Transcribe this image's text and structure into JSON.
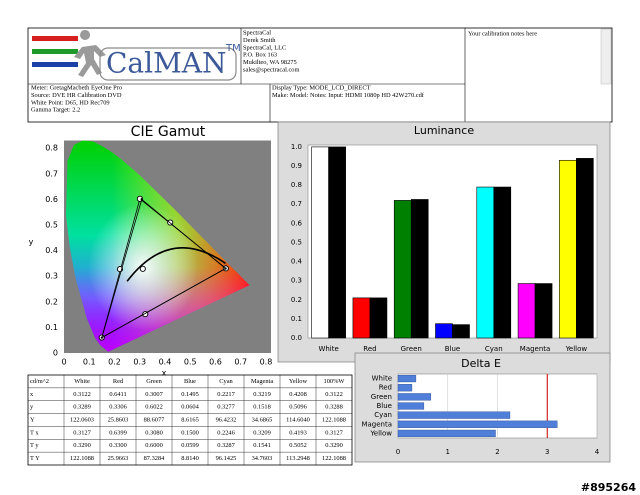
{
  "header": {
    "logo": "CalMAN",
    "logo_mark": "TM",
    "contact": [
      "SpectraCal",
      "Derek Smith",
      "SpectraCal, LLC",
      "P.O. Box 163",
      "Mukilteo, WA 98275",
      "sales@spectracal.com"
    ],
    "notes": "Your calibration notes here",
    "meter": [
      "Meter: GretagMacbeth EyeOne Pro",
      "Source: DVE HR Calibration DVD",
      "White Point: D65, HD Rec709",
      "Gamma Target: 2.2"
    ],
    "display": [
      "Display Type: MODE_LCD_DIRECT",
      "Make: Model: Notes: Input: HDMI 1080p HD     42W270.cdf"
    ]
  },
  "chart_data": [
    {
      "type": "scatter",
      "title": "CIE Gamut",
      "xlabel": "x",
      "ylabel": "y",
      "xlim": [
        0,
        0.82
      ],
      "ylim": [
        0,
        0.83
      ],
      "xticks": [
        0,
        0.1,
        0.2,
        0.3,
        0.4,
        0.5,
        0.6,
        0.7,
        0.8
      ],
      "yticks": [
        0,
        0.1,
        0.2,
        0.3,
        0.4,
        0.5,
        0.6,
        0.7,
        0.8
      ],
      "series": [
        {
          "color": "#000000",
          "x": [
            0.6411,
            0.3007,
            0.1495,
            0.2217,
            0.3219,
            0.4208,
            0.3122
          ],
          "values": [
            0.3306,
            0.6022,
            0.0604,
            0.3277,
            0.1518,
            0.5096,
            0.3289
          ]
        },
        {
          "color": "#000000",
          "x": [
            0.6399,
            0.308,
            0.15
          ],
          "values": [
            0.33,
            0.6,
            0.0599
          ]
        }
      ]
    },
    {
      "type": "bar",
      "title": "Luminance",
      "categories": [
        "White",
        "Red",
        "Green",
        "Blue",
        "Cyan",
        "Magenta",
        "Yellow"
      ],
      "ylim": [
        0,
        1.01
      ],
      "yticks": [
        {
          "value": 0,
          "label": "0.0"
        },
        0.1,
        0.2,
        0.3,
        0.4,
        0.5,
        0.6,
        0.7,
        0.8,
        0.9,
        {
          "value": 1,
          "label": "1.0"
        }
      ],
      "series": [
        {
          "colors": [
            "#ffffff",
            "#ff0000",
            "#008000",
            "#0000ff",
            "#00ffff",
            "#ff00ff",
            "#ffff00"
          ],
          "values": [
            1.0,
            0.21,
            0.72,
            0.075,
            0.79,
            0.285,
            0.93
          ]
        },
        {
          "color": "#000000",
          "values": [
            1.0,
            0.21,
            0.725,
            0.07,
            0.79,
            0.285,
            0.94
          ]
        }
      ]
    },
    {
      "type": "hbar",
      "title": "Delta E",
      "categories": [
        "White",
        "Red",
        "Green",
        "Blue",
        "Cyan",
        "Magenta",
        "Yellow"
      ],
      "values": [
        0.36,
        0.28,
        0.66,
        0.52,
        2.25,
        3.2,
        1.96
      ],
      "color": "#4f7fd8",
      "xlim": [
        0,
        4
      ],
      "xticks": [
        0,
        1,
        2,
        3,
        4
      ],
      "grid": true,
      "threshold": 3,
      "threshold_color": "#cc0000"
    }
  ],
  "table": {
    "header": [
      "cd/m^2",
      "White",
      "Red",
      "Green",
      "Blue",
      "Cyan",
      "Magenta",
      "Yellow",
      "100%W"
    ],
    "rows": [
      [
        "x",
        "0.3122",
        "0.6411",
        "0.3007",
        "0.1495",
        "0.2217",
        "0.3219",
        "0.4208",
        "0.3122"
      ],
      [
        "y",
        "0.3289",
        "0.3306",
        "0.6022",
        "0.0604",
        "0.3277",
        "0.1518",
        "0.5096",
        "0.3288"
      ],
      [
        "Y",
        "122.0603",
        "25.8603",
        "88.6077",
        "8.6165",
        "96.4232",
        "34.6865",
        "114.6040",
        "122.1088"
      ],
      [
        "T x",
        "0.3127",
        "0.6399",
        "0.3080",
        "0.1500",
        "0.2246",
        "0.3209",
        "0.4193",
        "0.3127"
      ],
      [
        "T y",
        "0.3290",
        "0.3300",
        "0.6000",
        "0.0599",
        "0.3287",
        "0.1541",
        "0.5052",
        "0.3290"
      ],
      [
        "T Y",
        "122.1088",
        "25.9663",
        "87.3284",
        "8.8140",
        "96.1425",
        "34.7603",
        "113.2948",
        "122.1088"
      ]
    ]
  },
  "watermark": "#895264"
}
